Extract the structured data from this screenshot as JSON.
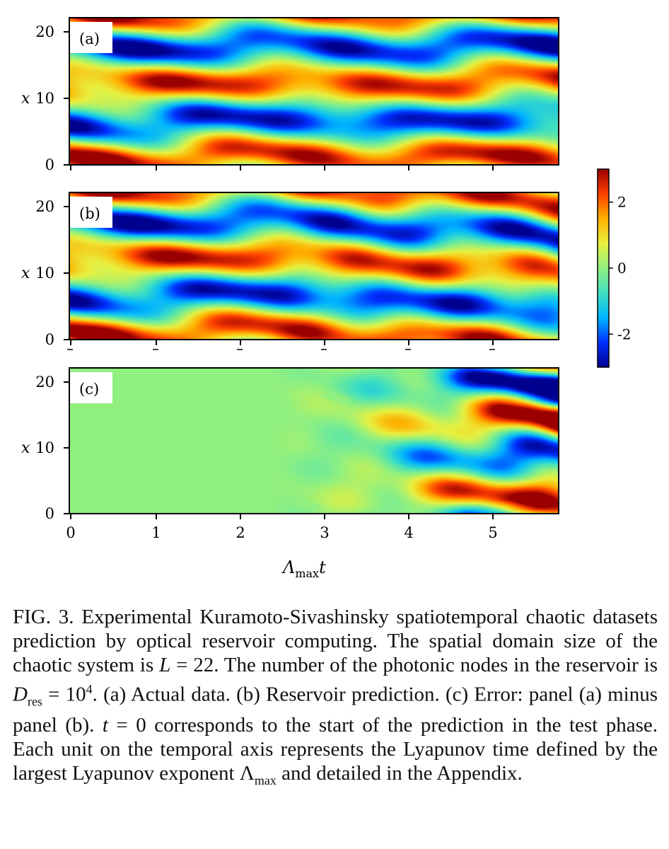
{
  "chart_data": [
    {
      "type": "heatmap",
      "panel_label": "(a)",
      "description_key": "actual",
      "ylabel": "x",
      "yticks": [
        "0",
        "10",
        "20"
      ],
      "xlim": [
        0,
        5.8
      ],
      "ylim": [
        0,
        22
      ],
      "field": "actual"
    },
    {
      "type": "heatmap",
      "panel_label": "(b)",
      "description_key": "prediction",
      "ylabel": "x",
      "yticks": [
        "0",
        "10",
        "20"
      ],
      "xlim": [
        0,
        5.8
      ],
      "ylim": [
        0,
        22
      ],
      "field": "prediction"
    },
    {
      "type": "heatmap",
      "panel_label": "(c)",
      "description_key": "error",
      "ylabel": "x",
      "yticks": [
        "0",
        "10",
        "20"
      ],
      "xticks": [
        "0",
        "1",
        "2",
        "3",
        "4",
        "5"
      ],
      "xlabel_main": "Λ",
      "xlabel_sub": "max",
      "xlabel_tail": "t",
      "xlim": [
        0,
        5.8
      ],
      "ylim": [
        0,
        22
      ],
      "field": "error"
    }
  ],
  "colorbar": {
    "range": [
      -3,
      3
    ],
    "ticks": [
      "2",
      "0",
      "-2"
    ],
    "tick_values": [
      2,
      0,
      -2
    ],
    "colormap": [
      "#00008f",
      "#0030ff",
      "#00b4ff",
      "#40e0c0",
      "#90f080",
      "#e8f040",
      "#ffb000",
      "#ff4000",
      "#9a0000"
    ]
  },
  "caption": {
    "fig": "FIG. 3.",
    "line1": "Experimental Kuramoto-Sivashinsky spatiotemporal chaotic datasets prediction by optical reservoir computing.",
    "line2a": "The spatial domain size of the chaotic system is ",
    "L": "L",
    "line2b": " = 22. The number of the photonic nodes in the reservoir is ",
    "D": "D",
    "Dsub": "res",
    "line2c": " = 10",
    "Dsup": "4",
    "line2d": ". (a) Actual data. (b) Reservoir prediction. (c) Error: panel (a) minus panel (b). ",
    "t": "t",
    "line3": " = 0 corresponds to the start of the prediction in the test phase. Each unit on the temporal axis represents the Lyapunov time defined by the largest Lyapunov exponent Λ",
    "lsub": "max",
    "line4": " and detailed in the Appendix."
  }
}
